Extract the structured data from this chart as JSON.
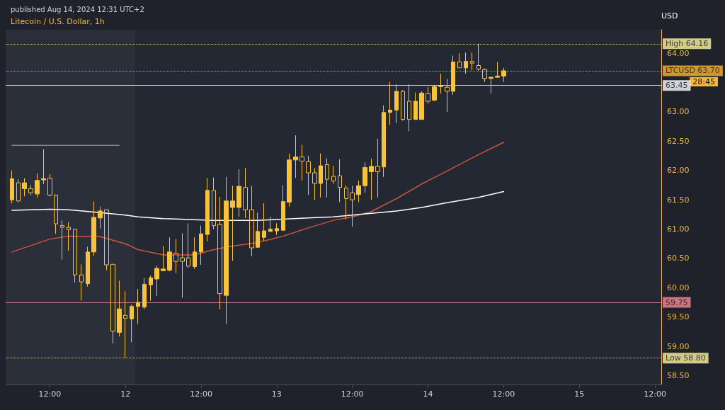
{
  "chart_data": {
    "type": "candlestick",
    "title": "Litecoin / U.S. Dollar, 1h",
    "subtitle": "published Aug 14, 2024 12:31 UTC+2",
    "ylabel": "USD",
    "x": [
      "2024-08-11T06:00",
      "2024-08-11T07:00",
      "2024-08-11T08:00",
      "2024-08-11T09:00",
      "2024-08-11T10:00",
      "2024-08-11T11:00",
      "2024-08-11T12:00",
      "2024-08-11T13:00",
      "2024-08-11T14:00",
      "2024-08-11T15:00",
      "2024-08-11T16:00",
      "2024-08-11T17:00",
      "2024-08-11T18:00",
      "2024-08-11T19:00",
      "2024-08-11T20:00",
      "2024-08-11T21:00",
      "2024-08-11T22:00",
      "2024-08-11T23:00",
      "2024-08-12T00:00",
      "2024-08-12T01:00",
      "2024-08-12T02:00",
      "2024-08-12T03:00",
      "2024-08-12T04:00",
      "2024-08-12T05:00",
      "2024-08-12T06:00",
      "2024-08-12T07:00",
      "2024-08-12T08:00",
      "2024-08-12T09:00",
      "2024-08-12T10:00",
      "2024-08-12T11:00",
      "2024-08-12T12:00",
      "2024-08-12T13:00",
      "2024-08-12T14:00",
      "2024-08-12T15:00",
      "2024-08-12T16:00",
      "2024-08-12T17:00",
      "2024-08-12T18:00",
      "2024-08-12T19:00",
      "2024-08-12T20:00",
      "2024-08-12T21:00",
      "2024-08-12T22:00",
      "2024-08-12T23:00",
      "2024-08-13T00:00",
      "2024-08-13T01:00",
      "2024-08-13T02:00",
      "2024-08-13T03:00",
      "2024-08-13T04:00",
      "2024-08-13T05:00",
      "2024-08-13T06:00",
      "2024-08-13T07:00",
      "2024-08-13T08:00",
      "2024-08-13T09:00",
      "2024-08-13T10:00",
      "2024-08-13T11:00",
      "2024-08-13T12:00",
      "2024-08-13T13:00",
      "2024-08-13T14:00",
      "2024-08-13T15:00",
      "2024-08-13T16:00",
      "2024-08-13T17:00",
      "2024-08-13T18:00",
      "2024-08-13T19:00",
      "2024-08-13T20:00",
      "2024-08-13T21:00",
      "2024-08-13T22:00",
      "2024-08-13T23:00",
      "2024-08-14T00:00",
      "2024-08-14T01:00",
      "2024-08-14T02:00",
      "2024-08-14T03:00",
      "2024-08-14T04:00",
      "2024-08-14T05:00",
      "2024-08-14T06:00",
      "2024-08-14T07:00",
      "2024-08-14T08:00",
      "2024-08-14T09:00",
      "2024-08-14T10:00",
      "2024-08-14T11:00",
      "2024-08-14T12:00"
    ],
    "ohlc": [
      [
        61.5,
        62.0,
        61.44,
        61.86
      ],
      [
        61.79,
        61.85,
        61.46,
        61.48
      ],
      [
        61.69,
        61.87,
        61.56,
        61.79
      ],
      [
        61.69,
        61.75,
        61.58,
        61.62
      ],
      [
        61.6,
        61.95,
        61.54,
        61.83
      ],
      [
        61.84,
        62.36,
        61.77,
        61.86
      ],
      [
        61.87,
        61.94,
        61.56,
        61.58
      ],
      [
        61.58,
        61.59,
        60.92,
        61.09
      ],
      [
        61.06,
        61.15,
        60.48,
        61.03
      ],
      [
        61.03,
        61.12,
        60.63,
        60.99
      ],
      [
        61.0,
        61.0,
        60.09,
        60.22
      ],
      [
        60.22,
        60.4,
        59.78,
        60.1
      ],
      [
        60.07,
        60.7,
        60.02,
        60.61
      ],
      [
        60.61,
        61.47,
        60.54,
        61.2
      ],
      [
        61.19,
        61.38,
        61.01,
        61.31
      ],
      [
        61.33,
        61.33,
        60.3,
        60.39
      ],
      [
        60.4,
        60.4,
        59.05,
        59.26
      ],
      [
        59.24,
        60.12,
        59.17,
        59.64
      ],
      [
        59.53,
        59.94,
        58.8,
        59.48
      ],
      [
        59.47,
        59.71,
        59.07,
        59.68
      ],
      [
        59.68,
        59.98,
        59.38,
        59.75
      ],
      [
        59.67,
        60.17,
        59.63,
        60.06
      ],
      [
        60.05,
        60.21,
        59.78,
        60.17
      ],
      [
        60.15,
        60.38,
        59.86,
        60.33
      ],
      [
        60.29,
        60.71,
        60.29,
        60.32
      ],
      [
        60.3,
        60.86,
        60.28,
        60.61
      ],
      [
        60.59,
        60.83,
        60.25,
        60.45
      ],
      [
        60.51,
        60.93,
        59.83,
        60.45
      ],
      [
        60.51,
        61.1,
        60.34,
        60.37
      ],
      [
        60.36,
        60.86,
        60.32,
        60.61
      ],
      [
        60.61,
        61.06,
        60.39,
        60.92
      ],
      [
        60.91,
        61.87,
        60.79,
        61.66
      ],
      [
        61.66,
        61.88,
        61.0,
        61.06
      ],
      [
        61.08,
        61.55,
        59.63,
        59.9
      ],
      [
        59.87,
        61.89,
        59.38,
        61.48
      ],
      [
        61.37,
        61.74,
        60.46,
        61.48
      ],
      [
        61.37,
        62.02,
        61.21,
        61.73
      ],
      [
        61.71,
        62.04,
        61.19,
        61.33
      ],
      [
        61.33,
        61.74,
        60.54,
        60.68
      ],
      [
        60.69,
        61.28,
        60.69,
        60.96
      ],
      [
        60.86,
        61.44,
        60.8,
        60.97
      ],
      [
        60.96,
        61.21,
        60.95,
        61.0
      ],
      [
        60.97,
        61.1,
        60.9,
        61.01
      ],
      [
        60.98,
        61.75,
        60.98,
        61.47
      ],
      [
        61.46,
        62.29,
        61.38,
        62.18
      ],
      [
        62.18,
        62.6,
        61.87,
        62.23
      ],
      [
        62.23,
        62.44,
        61.83,
        62.16
      ],
      [
        62.15,
        62.25,
        61.58,
        61.96
      ],
      [
        61.96,
        62.04,
        61.5,
        61.78
      ],
      [
        61.78,
        62.29,
        61.54,
        62.08
      ],
      [
        62.1,
        62.21,
        61.54,
        61.85
      ],
      [
        61.9,
        62.08,
        61.77,
        61.82
      ],
      [
        61.91,
        62.19,
        61.46,
        61.71
      ],
      [
        61.7,
        61.75,
        61.17,
        61.52
      ],
      [
        61.62,
        61.74,
        61.04,
        61.5
      ],
      [
        61.59,
        61.83,
        61.46,
        61.74
      ],
      [
        61.74,
        62.14,
        61.62,
        62.05
      ],
      [
        61.98,
        62.2,
        61.5,
        62.07
      ],
      [
        62.07,
        62.54,
        61.54,
        61.98
      ],
      [
        62.06,
        63.11,
        61.89,
        62.99
      ],
      [
        62.99,
        63.51,
        62.78,
        63.03
      ],
      [
        63.03,
        63.47,
        62.81,
        63.35
      ],
      [
        63.35,
        63.37,
        62.85,
        62.87
      ],
      [
        63.18,
        63.47,
        62.67,
        62.87
      ],
      [
        62.87,
        63.33,
        62.87,
        63.18
      ],
      [
        62.87,
        63.35,
        62.87,
        63.32
      ],
      [
        63.31,
        63.42,
        63.14,
        63.18
      ],
      [
        63.2,
        63.45,
        63.18,
        63.43
      ],
      [
        63.43,
        63.65,
        63.31,
        63.45
      ],
      [
        63.42,
        63.56,
        63.0,
        63.35
      ],
      [
        63.35,
        63.96,
        63.29,
        63.85
      ],
      [
        63.85,
        64.0,
        63.75,
        63.75
      ],
      [
        63.75,
        64.01,
        63.65,
        63.86
      ],
      [
        63.86,
        64.01,
        63.71,
        63.83
      ],
      [
        63.79,
        64.16,
        63.7,
        63.73
      ],
      [
        63.72,
        63.74,
        63.51,
        63.57
      ],
      [
        63.57,
        63.6,
        63.31,
        63.59
      ],
      [
        63.59,
        63.85,
        63.58,
        63.61
      ],
      [
        63.61,
        63.75,
        63.51,
        63.7
      ]
    ],
    "color": "#f7c33c",
    "series": [
      {
        "type": "line",
        "color": "#c8553d",
        "x": [
          "2024-08-11T06:00",
          "2024-08-11T12:00",
          "2024-08-11T15:00",
          "2024-08-11T20:00",
          "2024-08-12T00:00",
          "2024-08-12T02:00",
          "2024-08-12T06:00",
          "2024-08-12T11:00",
          "2024-08-12T14:00",
          "2024-08-12T17:00",
          "2024-08-12T21:00",
          "2024-08-13T01:00",
          "2024-08-13T05:00",
          "2024-08-13T09:00",
          "2024-08-13T12:00",
          "2024-08-13T15:00",
          "2024-08-13T19:00",
          "2024-08-13T23:00",
          "2024-08-14T03:00",
          "2024-08-14T08:00",
          "2024-08-14T12:00"
        ],
        "values": [
          60.61,
          60.83,
          60.88,
          60.87,
          60.75,
          60.65,
          60.56,
          60.56,
          60.65,
          60.71,
          60.77,
          60.88,
          61.02,
          61.15,
          61.21,
          61.3,
          61.52,
          61.77,
          61.99,
          62.27,
          62.48
        ]
      },
      {
        "type": "line",
        "color": "#ffffff",
        "x": [
          "2024-08-11T06:00",
          "2024-08-11T12:00",
          "2024-08-11T15:00",
          "2024-08-11T20:00",
          "2024-08-12T00:00",
          "2024-08-12T02:00",
          "2024-08-12T06:00",
          "2024-08-12T11:00",
          "2024-08-12T14:00",
          "2024-08-12T17:00",
          "2024-08-12T21:00",
          "2024-08-13T01:00",
          "2024-08-13T05:00",
          "2024-08-13T09:00",
          "2024-08-13T12:00",
          "2024-08-13T15:00",
          "2024-08-13T19:00",
          "2024-08-13T23:00",
          "2024-08-14T03:00",
          "2024-08-14T08:00",
          "2024-08-14T12:00"
        ],
        "values": [
          61.32,
          61.34,
          61.33,
          61.28,
          61.24,
          61.21,
          61.18,
          61.16,
          61.15,
          61.15,
          61.15,
          61.17,
          61.19,
          61.21,
          61.24,
          61.27,
          61.31,
          61.37,
          61.45,
          61.54,
          61.64
        ]
      },
      {
        "type": "line",
        "color": "#8a7f8c",
        "x": [
          "2024-08-11T06:00",
          "2024-08-11T23:00"
        ],
        "values": [
          62.43,
          62.43
        ]
      }
    ],
    "xlim": [
      "2024-08-11T05:00",
      "2024-08-15T13:00"
    ],
    "xticks": [
      {
        "value": "2024-08-11T12:00",
        "label": "12:00"
      },
      {
        "value": "2024-08-12T00:00",
        "label": "12"
      },
      {
        "value": "2024-08-12T12:00",
        "label": "12:00"
      },
      {
        "value": "2024-08-13T00:00",
        "label": "13"
      },
      {
        "value": "2024-08-13T12:00",
        "label": "12:00"
      },
      {
        "value": "2024-08-14T00:00",
        "label": "14"
      },
      {
        "value": "2024-08-14T12:00",
        "label": "12:00"
      },
      {
        "value": "2024-08-15T00:00",
        "label": "15"
      },
      {
        "value": "2024-08-15T12:00",
        "label": "12:00"
      }
    ],
    "ylim": [
      58.35,
      64.4
    ],
    "yticks": [
      {
        "value": 58.5,
        "label": "58.50"
      },
      {
        "value": 59,
        "label": "59.00"
      },
      {
        "value": 59.5,
        "label": "59.50"
      },
      {
        "value": 60,
        "label": "60.00"
      },
      {
        "value": 60.5,
        "label": "60.50"
      },
      {
        "value": 61,
        "label": "61.00"
      },
      {
        "value": 61.5,
        "label": "61.50"
      },
      {
        "value": 62,
        "label": "62.00"
      },
      {
        "value": 62.5,
        "label": "62.50"
      },
      {
        "value": 63,
        "label": "63.00"
      },
      {
        "value": 64,
        "label": "64.00"
      }
    ],
    "ref_lines": [
      {
        "axis": "y",
        "value": 64.16,
        "label": "High 64.16",
        "color": "#fff59d",
        "line_style": "dotted"
      },
      {
        "axis": "y",
        "value": 63.7,
        "label": "LTCUSD 63.70",
        "color": "#f7b731",
        "line_style": "dotted"
      },
      {
        "axis": "y",
        "value": 63.45,
        "label": "63.45",
        "color": "#ffffff",
        "line_style": "solid"
      },
      {
        "axis": "y",
        "value": 59.75,
        "label": "59.75",
        "color": "#f28b95",
        "line_style": "solid"
      },
      {
        "axis": "y",
        "value": 58.8,
        "label": "Low 58.80",
        "color": "#fff59d",
        "line_style": "dotted"
      }
    ],
    "bands": [
      {
        "axis": "x",
        "from": "2024-08-11T05:00",
        "to": "2024-08-12T01:30",
        "color": "#2b2f3a"
      }
    ],
    "annotations": [
      "28:45"
    ],
    "grid": false
  }
}
